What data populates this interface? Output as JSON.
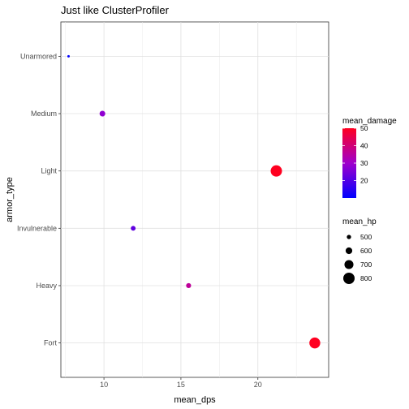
{
  "chart_data": {
    "type": "scatter",
    "title": "Just like ClusterProfiler",
    "xlabel": "mean_dps",
    "ylabel": "armor_type",
    "xlim": [
      7.2,
      24.6
    ],
    "x_ticks": [
      10,
      15,
      20
    ],
    "categories": [
      "Fort",
      "Heavy",
      "Invulnerable",
      "Light",
      "Medium",
      "Unarmored"
    ],
    "points": [
      {
        "category": "Unarmored",
        "x": 7.7,
        "mean_damage": 10,
        "mean_hp": 420
      },
      {
        "category": "Medium",
        "x": 9.9,
        "mean_damage": 28,
        "mean_hp": 560
      },
      {
        "category": "Light",
        "x": 21.2,
        "mean_damage": 50,
        "mean_hp": 800
      },
      {
        "category": "Invulnerable",
        "x": 11.9,
        "mean_damage": 22,
        "mean_hp": 520
      },
      {
        "category": "Heavy",
        "x": 15.5,
        "mean_damage": 36,
        "mean_hp": 530
      },
      {
        "category": "Fort",
        "x": 23.7,
        "mean_damage": 50,
        "mean_hp": 780
      }
    ],
    "color_legend": {
      "title": "mean_damage",
      "low_color": "#0000ff",
      "high_color": "#ff0000",
      "min": 10,
      "max": 50,
      "ticks": [
        20,
        30,
        40,
        50
      ]
    },
    "size_legend": {
      "title": "mean_hp",
      "values": [
        500,
        600,
        700,
        800
      ],
      "hp_range": [
        420,
        800
      ]
    },
    "grid": true,
    "panel_border": true
  }
}
